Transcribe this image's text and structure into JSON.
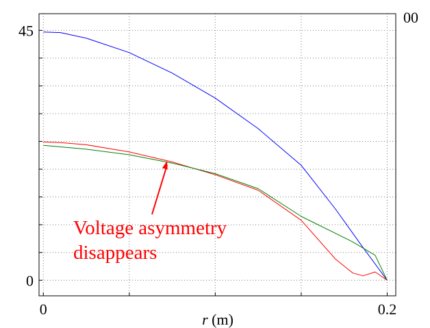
{
  "chart_data": {
    "type": "line",
    "title": "",
    "xlabel_var": "r",
    "xlabel_unit": " (m)",
    "ylabel": "",
    "xlim": [
      -0.0025,
      0.205
    ],
    "ylim": [
      -2.8,
      48
    ],
    "grid": true,
    "x_tick_labels": [
      {
        "value": 0,
        "label": "0"
      },
      {
        "value": 0.2,
        "label": "0.2"
      }
    ],
    "y_tick_labels": [
      {
        "value": 0,
        "label": "0"
      },
      {
        "value": 45,
        "label": "45"
      }
    ],
    "x_grid_values": [
      0,
      0.05,
      0.1,
      0.15,
      0.2
    ],
    "y_grid_values": [
      0,
      5,
      10,
      15,
      20,
      25,
      30,
      35,
      40,
      45
    ],
    "partial_label": "00",
    "series": [
      {
        "color": "#0000ff",
        "points": [
          [
            0,
            44.7
          ],
          [
            0.01,
            44.6
          ],
          [
            0.025,
            43.6
          ],
          [
            0.05,
            41.0
          ],
          [
            0.075,
            37.3
          ],
          [
            0.1,
            32.8
          ],
          [
            0.125,
            27.3
          ],
          [
            0.15,
            20.7
          ],
          [
            0.17,
            12.8
          ],
          [
            0.185,
            6.3
          ],
          [
            0.2,
            0
          ]
        ]
      },
      {
        "color": "#ff0000",
        "points": [
          [
            0,
            24.9
          ],
          [
            0.01,
            24.8
          ],
          [
            0.025,
            24.4
          ],
          [
            0.05,
            23.1
          ],
          [
            0.075,
            21.3
          ],
          [
            0.1,
            19.0
          ],
          [
            0.125,
            16.2
          ],
          [
            0.15,
            10.8
          ],
          [
            0.17,
            3.8
          ],
          [
            0.18,
            1.3
          ],
          [
            0.186,
            0.8
          ],
          [
            0.193,
            1.5
          ],
          [
            0.2,
            0
          ]
        ]
      },
      {
        "color": "#008000",
        "points": [
          [
            0,
            24.3
          ],
          [
            0.025,
            23.6
          ],
          [
            0.05,
            22.6
          ],
          [
            0.075,
            21.1
          ],
          [
            0.1,
            19.2
          ],
          [
            0.125,
            16.5
          ],
          [
            0.15,
            11.5
          ],
          [
            0.18,
            6.9
          ],
          [
            0.193,
            4.5
          ],
          [
            0.2,
            0
          ]
        ]
      }
    ],
    "annotations": [
      {
        "text_lines": [
          "Voltage asymmetry",
          "disappears"
        ],
        "color": "#ff0000",
        "arrow_to": [
          0.072,
          21.5
        ]
      }
    ]
  }
}
